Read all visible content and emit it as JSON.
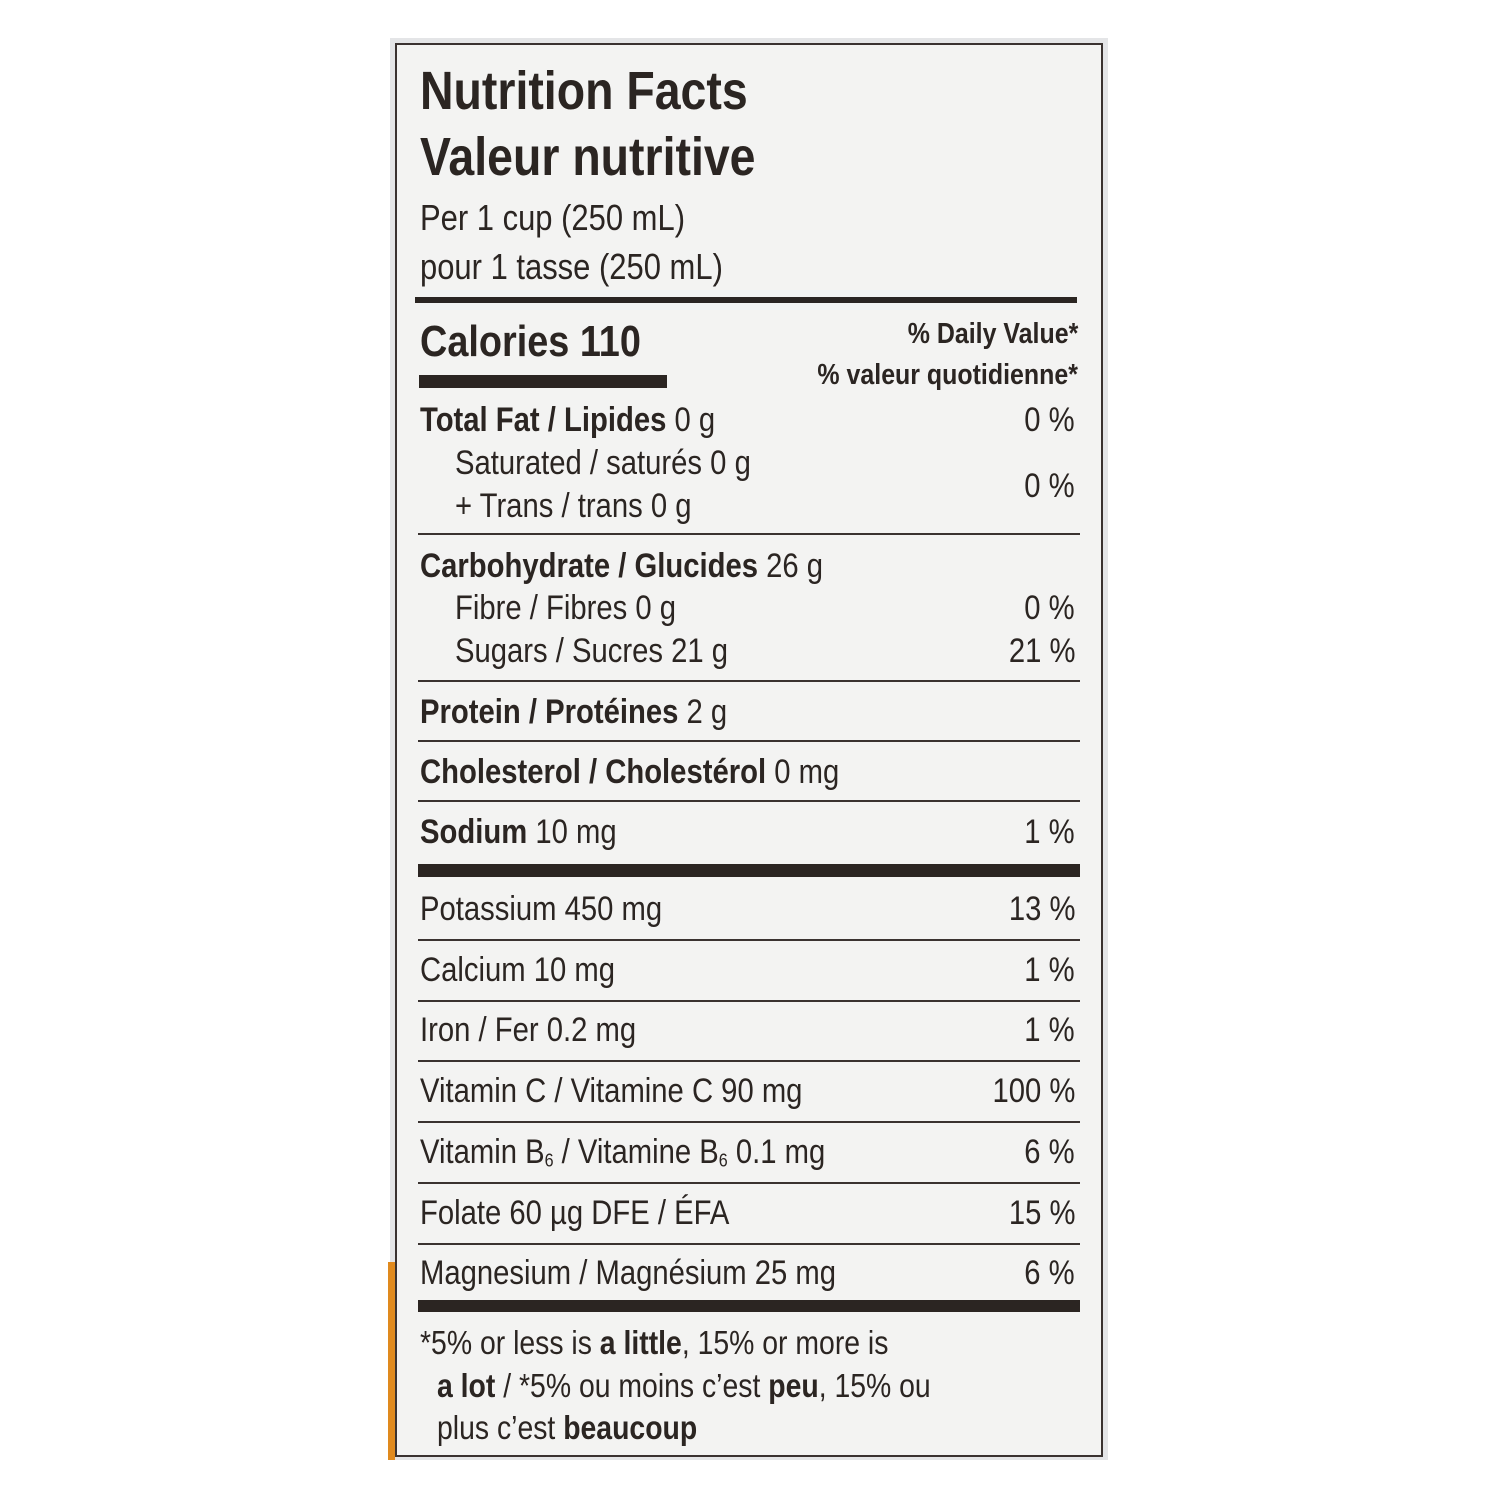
{
  "title": "Nutrition Facts",
  "title_fr": "Valeur nutritive",
  "serving": "Per 1 cup (250 mL)",
  "serving_fr": "pour 1 tasse (250 mL)",
  "calories": "Calories 110",
  "dv_header": "% Daily Value*",
  "dv_header_fr": "% valeur quotidienne*",
  "fat": {
    "name": "Total Fat / Lipides",
    "amount": "0 g",
    "dv": "0 %",
    "saturated": "Saturated / saturés 0 g",
    "trans": "+ Trans / trans 0 g",
    "sub_dv": "0 %"
  },
  "carbohydrate": {
    "name": "Carbohydrate / Glucides",
    "amount": "26 g",
    "fibre": "Fibre / Fibres 0 g",
    "fibre_dv": "0 %",
    "sugars": "Sugars / Sucres 21 g",
    "sugars_dv": "21 %"
  },
  "protein": {
    "name": "Protein / Protéines",
    "amount": "2 g"
  },
  "cholesterol": {
    "name": "Cholesterol / Cholestérol",
    "amount": "0 mg"
  },
  "sodium": {
    "name": "Sodium",
    "amount": "10 mg",
    "dv": "1 %"
  },
  "minerals": [
    {
      "name": "Potassium 450 mg",
      "dv": "13 %"
    },
    {
      "name": "Calcium 10 mg",
      "dv": "1 %"
    },
    {
      "name": "Iron / Fer 0.2 mg",
      "dv": "1 %"
    },
    {
      "name": "Vitamin C / Vitamine C 90 mg",
      "dv": "100 %"
    },
    {
      "name": [
        "Vitamin B",
        "6",
        " / Vitamine B",
        "6",
        " 0.1 mg"
      ],
      "dv": "6 %"
    },
    {
      "name": "Folate 60 µg DFE / ÉFA",
      "dv": "15 %"
    },
    {
      "name": "Magnesium / Magnésium 25 mg",
      "dv": "6 %"
    }
  ],
  "footnote": [
    [
      "*5% or less is ",
      "a little",
      ", 15% or more is"
    ],
    [
      "a lot",
      " / *5% ou moins c’est ",
      "peu",
      ", 15% ou"
    ],
    [
      "plus c’est ",
      "beaucoup"
    ]
  ]
}
